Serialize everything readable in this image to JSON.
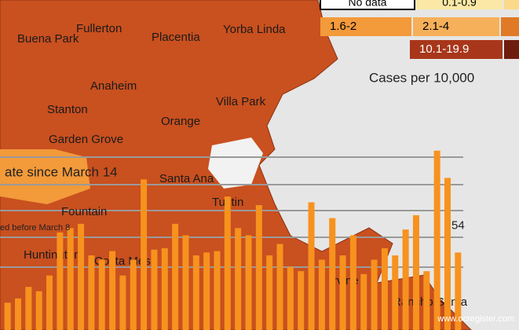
{
  "legend": {
    "items": [
      "No data",
      "0.1-0.9",
      "1.6-2",
      "2.1-4",
      "10.1-19.9"
    ],
    "title": "Cases per 10,000"
  },
  "map_labels": [
    "Buena Park",
    "Fullerton",
    "Placentia",
    "Yorba Linda",
    "Anaheim",
    "Villa Park",
    "Orange",
    "Stanton",
    "Garden Grove",
    "Santa Ana",
    "Fountain",
    "Tustin",
    "Huntington",
    "Costa Mesa",
    "Irvine",
    "Rancho Santa"
  ],
  "overlay_texts": [
    "ate since March 14",
    "ed before March 8"
  ],
  "watermark": "www.ocregister.com",
  "chart_data": {
    "type": "bar",
    "color": "#f7921e",
    "ylim": [
      0,
      230
    ],
    "categories": [
      null,
      null,
      null,
      null,
      null,
      null,
      null,
      null,
      null,
      null,
      null,
      null,
      null,
      null,
      null,
      null,
      null,
      null,
      null,
      null,
      null,
      null,
      null,
      null,
      null,
      null,
      null,
      null,
      null,
      null,
      null,
      null,
      null,
      null,
      null,
      null,
      null,
      null,
      null,
      null,
      null,
      null,
      null,
      null
    ],
    "values": [
      19,
      22,
      30,
      27,
      38,
      68,
      71,
      74,
      52,
      49,
      55,
      38,
      49,
      105,
      56,
      57,
      74,
      66,
      52,
      54,
      55,
      93,
      71,
      66,
      87,
      52,
      60,
      44,
      41,
      89,
      49,
      78,
      52,
      66,
      39,
      49,
      57,
      52,
      70,
      80,
      41,
      125,
      106,
      54
    ]
  }
}
